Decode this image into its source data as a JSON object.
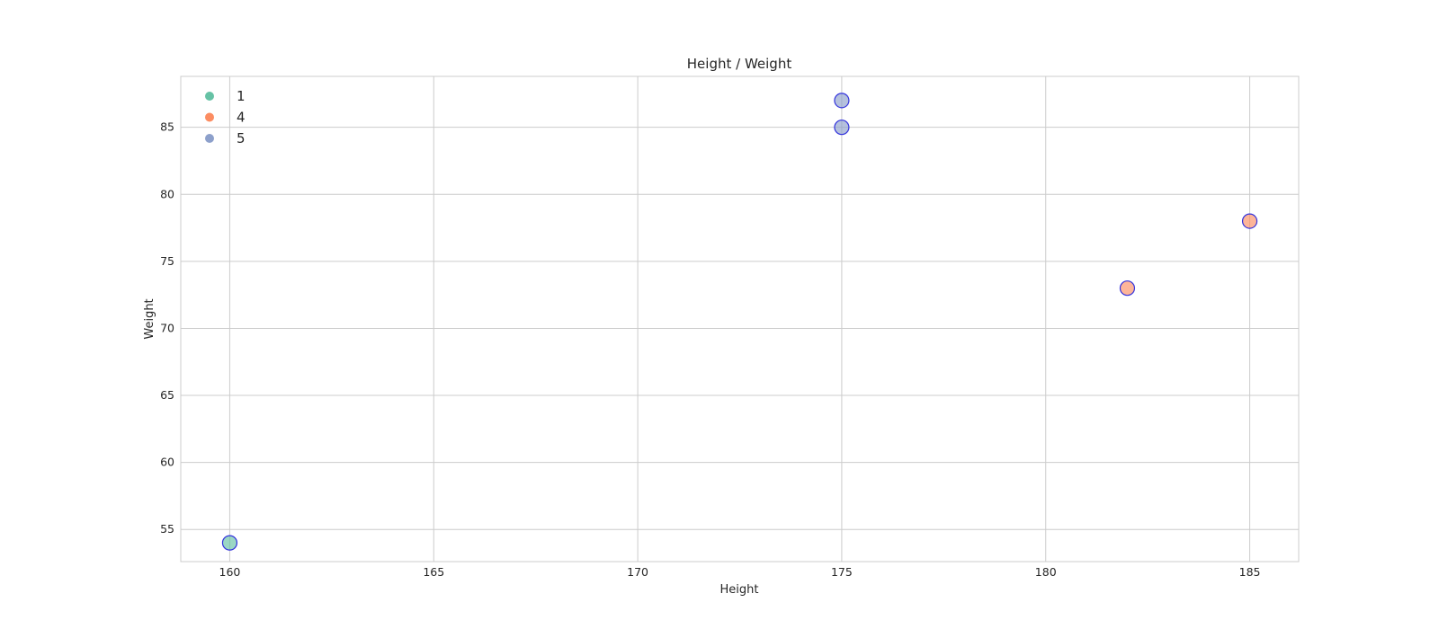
{
  "chart_data": {
    "type": "scatter",
    "title": "Height / Weight",
    "xlabel": "Height",
    "ylabel": "Weight",
    "xlim": [
      158.8,
      186.2
    ],
    "ylim": [
      52.6,
      88.8
    ],
    "xticks": [
      160,
      165,
      170,
      175,
      180,
      185
    ],
    "yticks": [
      55,
      60,
      65,
      70,
      75,
      80,
      85
    ],
    "grid": true,
    "legend_position": "top-left",
    "marker_edge_color": "#3333dd",
    "series": [
      {
        "name": "1",
        "color": "#66c2a5",
        "points": [
          {
            "x": 160,
            "y": 54
          }
        ]
      },
      {
        "name": "4",
        "color": "#fc8d62",
        "points": [
          {
            "x": 182,
            "y": 73
          },
          {
            "x": 185,
            "y": 78
          }
        ]
      },
      {
        "name": "5",
        "color": "#8da0cb",
        "points": [
          {
            "x": 175,
            "y": 87
          },
          {
            "x": 175,
            "y": 85
          }
        ]
      }
    ]
  }
}
